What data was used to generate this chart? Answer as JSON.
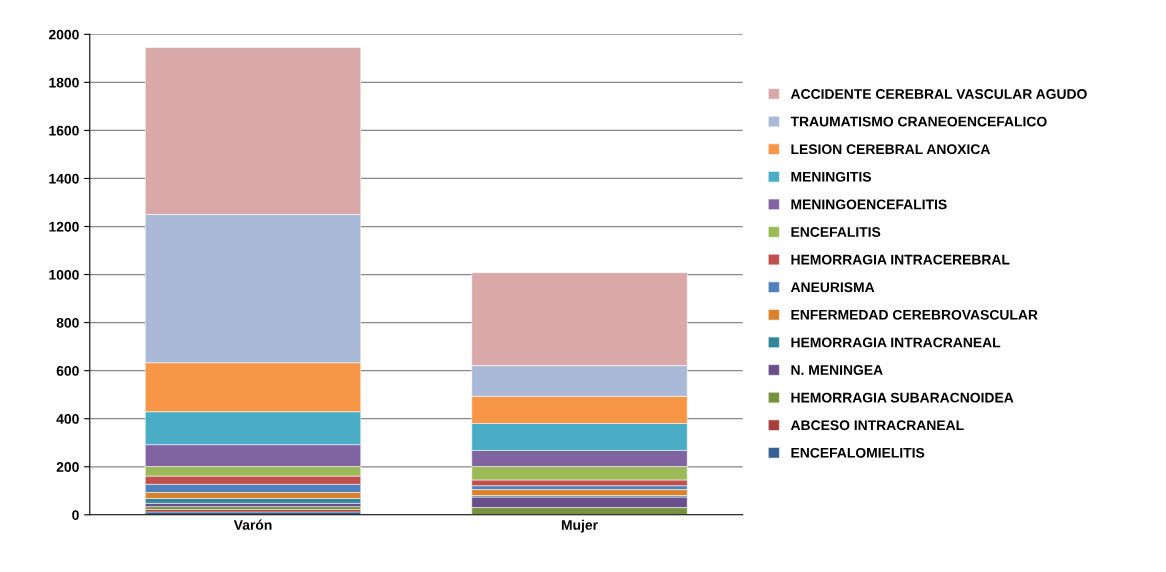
{
  "chart_data": {
    "type": "bar",
    "stacked": true,
    "categories": [
      "Varón",
      "Mujer"
    ],
    "ylim": [
      0,
      2000
    ],
    "yticks": [
      0,
      200,
      400,
      600,
      800,
      1000,
      1200,
      1400,
      1600,
      1800,
      2000
    ],
    "grid": "y",
    "legend": "right",
    "series": [
      {
        "name": "ENCEFALOMIELITIS",
        "color": "#366092",
        "values": [
          12,
          0
        ]
      },
      {
        "name": "ABCESO INTRACRANEAL",
        "color": "#a5403c",
        "values": [
          10,
          0
        ]
      },
      {
        "name": "HEMORRAGIA SUBARACNOIDEA",
        "color": "#76923c",
        "values": [
          12,
          30
        ]
      },
      {
        "name": "N. MENINGEA",
        "color": "#6a4f8c",
        "values": [
          14,
          44
        ]
      },
      {
        "name": "HEMORRAGIA INTRACRANEAL",
        "color": "#31859c",
        "values": [
          20,
          6
        ]
      },
      {
        "name": "ENFERMEDAD CEREBROVASCULAR",
        "color": "#d9822b",
        "values": [
          25,
          25
        ]
      },
      {
        "name": "ANEURISMA",
        "color": "#4f81bd",
        "values": [
          34,
          16
        ]
      },
      {
        "name": "HEMORRAGIA INTRACEREBRAL",
        "color": "#c0504d",
        "values": [
          34,
          24
        ]
      },
      {
        "name": "ENCEFALITIS",
        "color": "#9bbb59",
        "values": [
          40,
          56
        ]
      },
      {
        "name": "MENINGOENCEFALITIS",
        "color": "#8064a2",
        "values": [
          91,
          67
        ]
      },
      {
        "name": "MENINGITIS",
        "color": "#4bacc6",
        "values": [
          137,
          112
        ]
      },
      {
        "name": "LESION CEREBRAL ANOXICA",
        "color": "#f79646",
        "values": [
          204,
          113
        ]
      },
      {
        "name": "TRAUMATISMO CRANEOENCEFALICO",
        "color": "#aab9d7",
        "values": [
          617,
          128
        ]
      },
      {
        "name": "ACCIDENTE CEREBRAL VASCULAR AGUDO",
        "color": "#d9a9a9",
        "values": [
          695,
          387
        ]
      }
    ]
  }
}
